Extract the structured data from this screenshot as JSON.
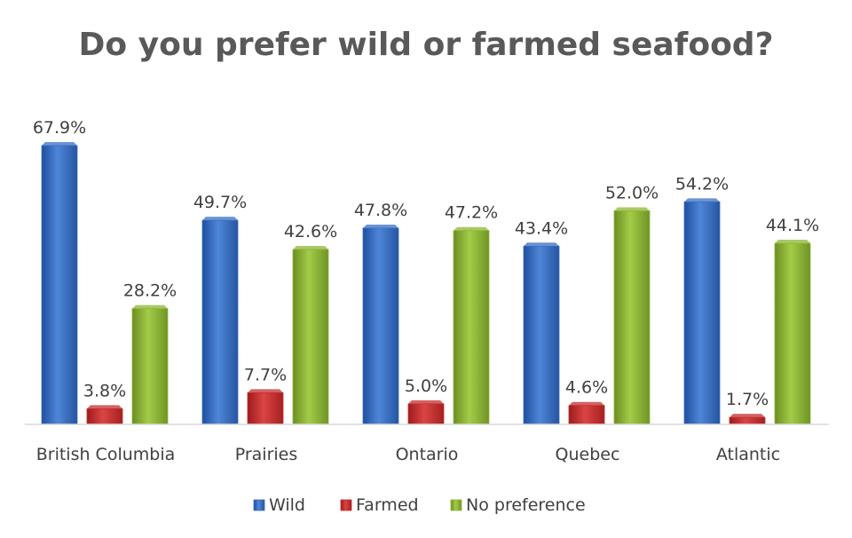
{
  "colors": {
    "wild": "#3a6fc4",
    "farmed": "#c62d2d",
    "no_preference": "#8db634",
    "text": "#404040",
    "title": "#595959"
  },
  "chart_data": {
    "type": "bar",
    "title": "Do you prefer wild or farmed seafood?",
    "categories": [
      "British Columbia",
      "Prairies",
      "Ontario",
      "Quebec",
      "Atlantic"
    ],
    "series": [
      {
        "name": "Wild",
        "values": [
          67.9,
          49.7,
          47.8,
          43.4,
          54.2
        ],
        "labels": [
          "67.9%",
          "49.7%",
          "47.8%",
          "43.4%",
          "54.2%"
        ]
      },
      {
        "name": "Farmed",
        "values": [
          3.8,
          7.7,
          5.0,
          4.6,
          1.7
        ],
        "labels": [
          "3.8%",
          "7.7%",
          "5.0%",
          "4.6%",
          "1.7%"
        ]
      },
      {
        "name": "No preference",
        "values": [
          28.2,
          42.6,
          47.2,
          52.0,
          44.1
        ],
        "labels": [
          "28.2%",
          "42.6%",
          "47.2%",
          "52.0%",
          "44.1%"
        ]
      }
    ],
    "ylim": [
      0,
      70
    ],
    "unit": "%",
    "grid": false,
    "legend_position": "bottom",
    "chart_style": "3d-bar"
  }
}
